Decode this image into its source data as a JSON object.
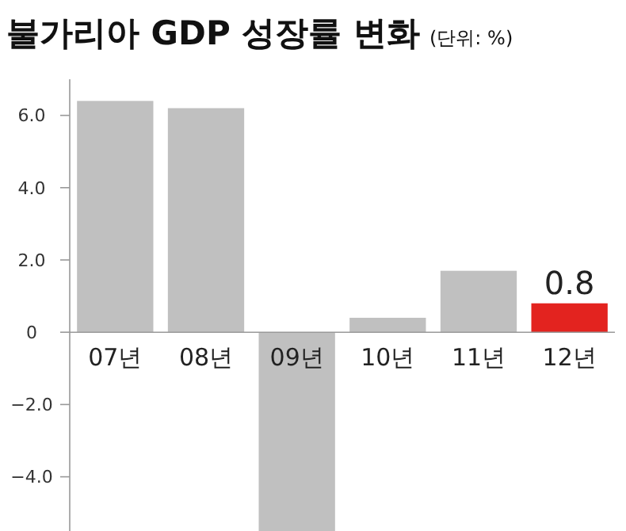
{
  "chart_data": {
    "type": "bar",
    "title": "불가리아 GDP 성장률 변화",
    "subtitle": "(단위: %)",
    "categories": [
      "07년",
      "08년",
      "09년",
      "10년",
      "11년",
      "12년"
    ],
    "values": [
      6.4,
      6.2,
      -5.5,
      0.4,
      1.7,
      0.8
    ],
    "colors": [
      "#c0c0c0",
      "#c0c0c0",
      "#c0c0c0",
      "#c0c0c0",
      "#c0c0c0",
      "#e3231f"
    ],
    "value_labels": [
      null,
      null,
      null,
      null,
      null,
      "0.8"
    ],
    "ylim": [
      -5.5,
      7
    ],
    "yticks": [
      {
        "value": 6,
        "label": "6.0"
      },
      {
        "value": 4,
        "label": "4.0"
      },
      {
        "value": 2,
        "label": "2.0"
      },
      0,
      {
        "value": -2,
        "label": "−2.0"
      },
      {
        "value": -4,
        "label": "−4.0"
      }
    ],
    "grid": false
  }
}
